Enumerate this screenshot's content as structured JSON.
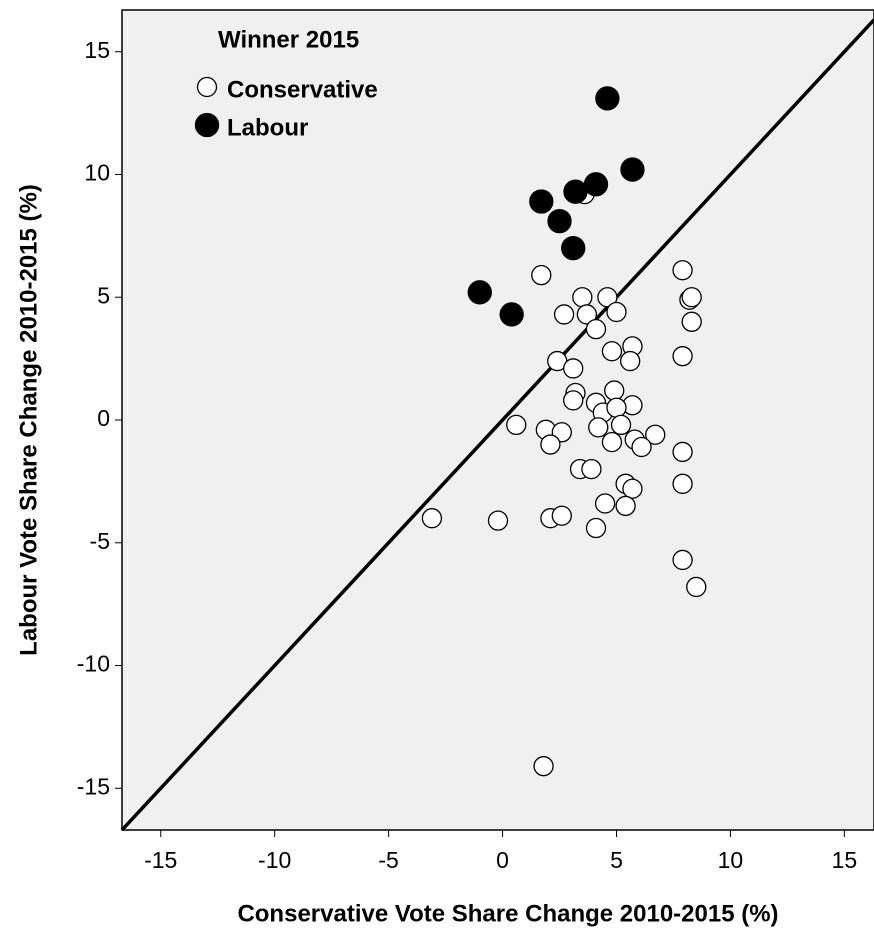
{
  "chart_data": {
    "type": "scatter",
    "x_label": "Conservative Vote Share Change 2010-2015 (%)",
    "y_label": "Labour Vote Share Change 2010-2015 (%)",
    "legend_title": "Winner 2015",
    "legend_position": "top-left",
    "xlim": [
      -16.7,
      16.3
    ],
    "ylim": [
      -16.7,
      16.7
    ],
    "xticks": [
      -15,
      -10,
      -5,
      0,
      5,
      10,
      15
    ],
    "yticks": [
      -15,
      -10,
      -5,
      0,
      5,
      10,
      15
    ],
    "reference_line": "y=x",
    "series": [
      {
        "name": "Conservative",
        "color": "#ffffff",
        "x": [
          1.7,
          7.9,
          4.6,
          3.5,
          8.2,
          8.3,
          2.7,
          3.7,
          5.0,
          4.1,
          8.3,
          4.8,
          5.7,
          5.6,
          7.9,
          2.4,
          3.1,
          4.9,
          3.2,
          3.1,
          4.1,
          4.4,
          5.7,
          5.0,
          0.6,
          1.9,
          2.6,
          4.2,
          5.2,
          6.7,
          2.1,
          4.8,
          5.8,
          6.1,
          7.9,
          3.4,
          3.9,
          5.4,
          5.7,
          7.9,
          4.5,
          5.4,
          -3.1,
          -0.2,
          2.1,
          2.6,
          4.1,
          7.9,
          8.5,
          1.8,
          3.6
        ],
        "y": [
          5.9,
          6.1,
          5.0,
          5.0,
          4.9,
          5.0,
          4.3,
          4.3,
          4.4,
          3.7,
          4.0,
          2.8,
          3.0,
          2.4,
          2.6,
          2.4,
          2.1,
          1.2,
          1.1,
          0.8,
          0.7,
          0.3,
          0.6,
          0.5,
          -0.2,
          -0.4,
          -0.5,
          -0.3,
          -0.2,
          -0.6,
          -1.0,
          -0.9,
          -0.8,
          -1.1,
          -1.3,
          -2.0,
          -2.0,
          -2.6,
          -2.8,
          -2.6,
          -3.4,
          -3.5,
          -4.0,
          -4.1,
          -4.0,
          -3.9,
          -4.4,
          -5.7,
          -6.8,
          -14.1,
          9.2
        ]
      },
      {
        "name": "Labour",
        "color": "#000000",
        "x": [
          -1.0,
          0.4,
          1.7,
          2.5,
          3.1,
          3.2,
          4.1,
          4.6,
          5.7
        ],
        "y": [
          5.2,
          4.3,
          8.9,
          8.1,
          7.0,
          9.3,
          9.6,
          13.1,
          10.2
        ]
      }
    ]
  }
}
